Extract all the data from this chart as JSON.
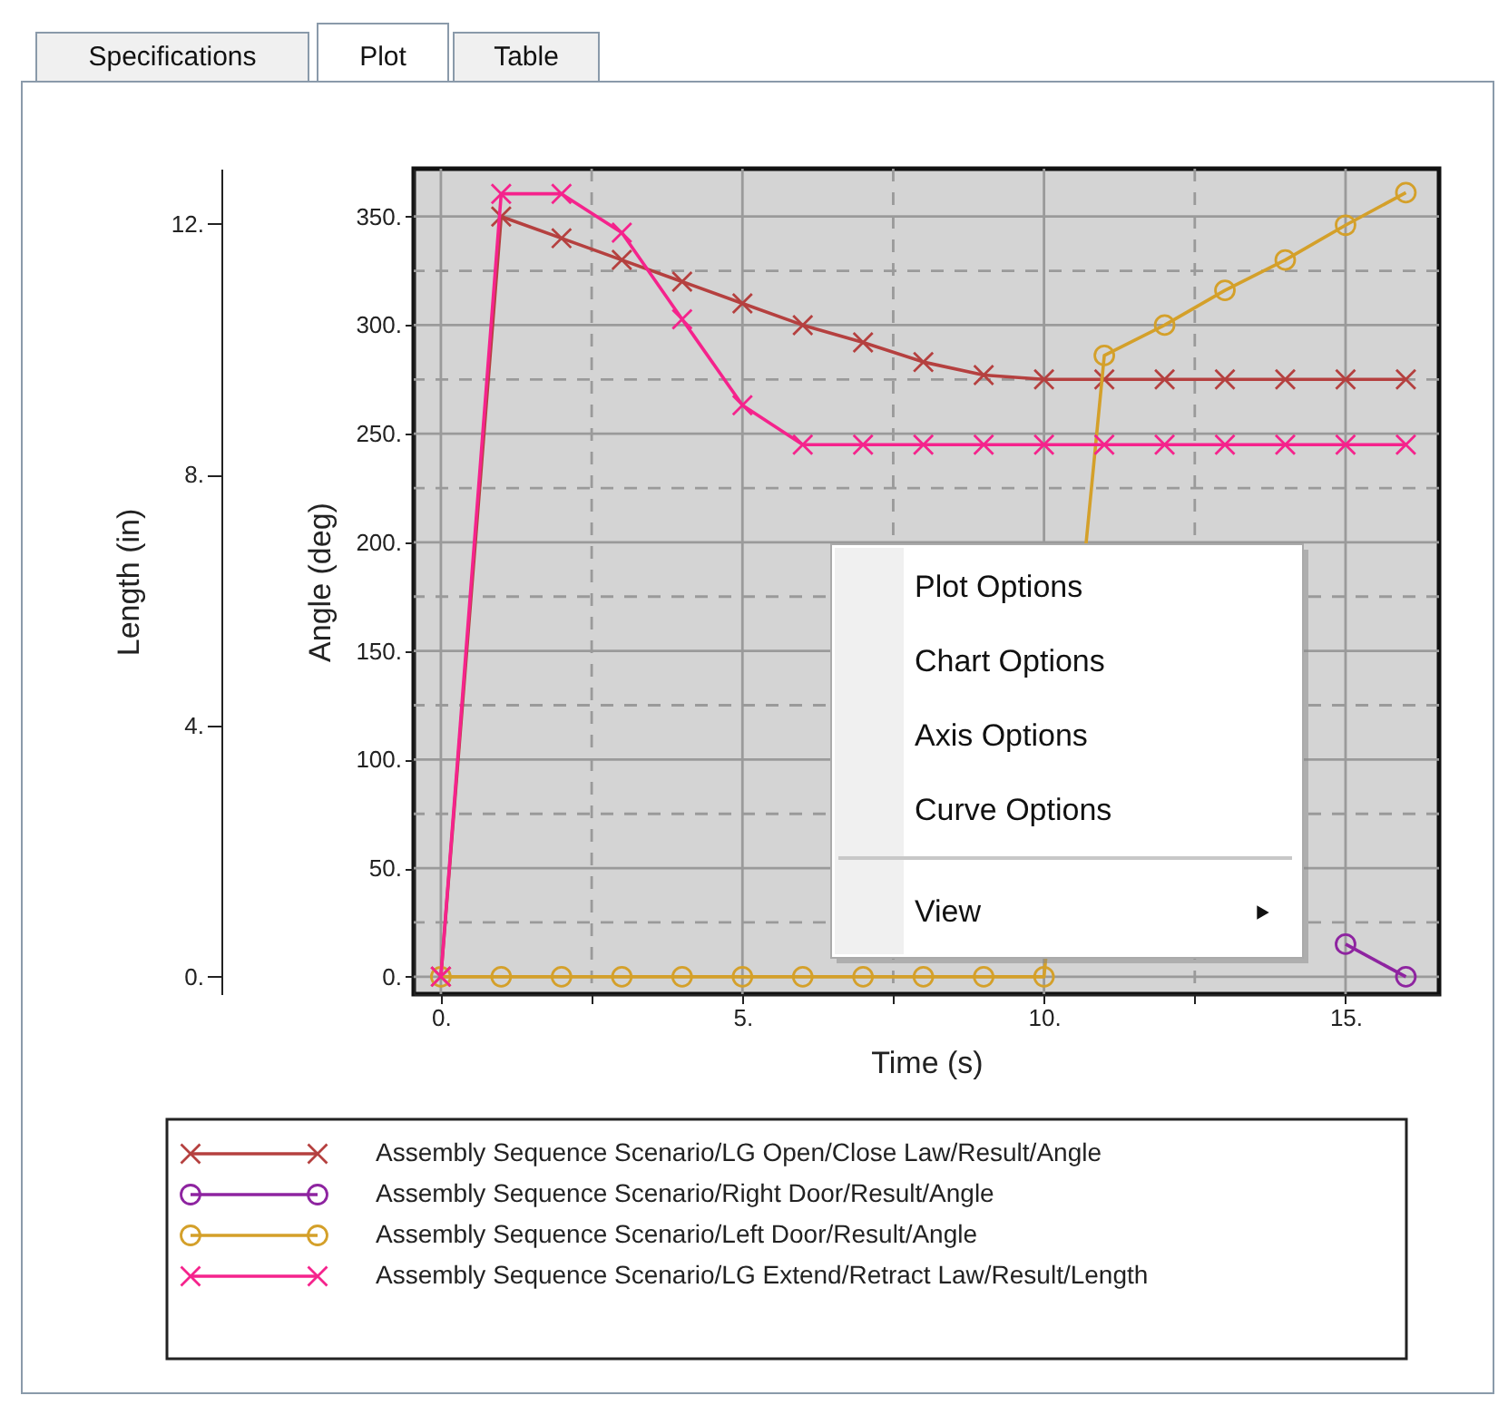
{
  "chart_data": {
    "type": "line",
    "xlabel": "Time (s)",
    "ylabel": "Angle (deg)",
    "y2label": "Length (in)",
    "x": [
      0,
      1,
      2,
      3,
      4,
      5,
      6,
      7,
      8,
      9,
      10,
      11,
      12,
      13,
      14,
      15,
      16
    ],
    "xlim": [
      -0.45,
      16.55
    ],
    "xticks": [
      {
        "value": 0,
        "label": "0."
      },
      {
        "value": 2.5,
        "label": null
      },
      {
        "value": 5,
        "label": "5."
      },
      {
        "value": 7.5,
        "label": null
      },
      {
        "value": 10,
        "label": "10."
      },
      {
        "value": 12.5,
        "label": null
      },
      {
        "value": 15,
        "label": "15."
      }
    ],
    "ylim": [
      -8,
      372
    ],
    "yticks": [
      {
        "value": 0,
        "label": "0."
      },
      {
        "value": 25,
        "label": null
      },
      {
        "value": 50,
        "label": "50."
      },
      {
        "value": 75,
        "label": null
      },
      {
        "value": 100,
        "label": "100."
      },
      {
        "value": 125,
        "label": null
      },
      {
        "value": 150,
        "label": "150."
      },
      {
        "value": 175,
        "label": null
      },
      {
        "value": 200,
        "label": "200."
      },
      {
        "value": 225,
        "label": null
      },
      {
        "value": 250,
        "label": "250."
      },
      {
        "value": 275,
        "label": null
      },
      {
        "value": 300,
        "label": "300."
      },
      {
        "value": 325,
        "label": null
      },
      {
        "value": 350,
        "label": "350."
      }
    ],
    "y2lim": [
      -0.28,
      12.88
    ],
    "y2ticks": [
      {
        "value": 0,
        "label": "0."
      },
      {
        "value": 4,
        "label": "4."
      },
      {
        "value": 8,
        "label": "8."
      },
      {
        "value": 12,
        "label": "12."
      }
    ],
    "grid": true,
    "legend": "bottom",
    "series": [
      {
        "name": "Assembly Sequence Scenario/LG Open/Close Law/Result/Angle",
        "color": "#b5403f",
        "marker": "cross",
        "values": [
          0,
          350,
          340,
          330,
          320,
          310,
          300,
          292,
          283,
          277,
          275,
          275,
          275,
          275,
          275,
          275,
          275
        ]
      },
      {
        "name": "Assembly Sequence Scenario/Right Door/Result/Angle",
        "color": "#8e24a0",
        "marker": "circle",
        "x": [
          15,
          16
        ],
        "values": [
          15,
          0
        ]
      },
      {
        "name": "Assembly Sequence Scenario/Left Door/Result/Angle",
        "color": "#d4a02a",
        "marker": "circle",
        "values": [
          0,
          0,
          0,
          0,
          0,
          0,
          0,
          0,
          0,
          0,
          0,
          286,
          300,
          316,
          330,
          346,
          361
        ]
      },
      {
        "name": "Assembly Sequence Scenario/LG Extend/Retract Law/Result/Length",
        "color": "#f5238c",
        "marker": "cross",
        "axis": "y2",
        "values": [
          0,
          12.48,
          12.48,
          11.86,
          10.48,
          9.11,
          8.48,
          8.48,
          8.48,
          8.48,
          8.48,
          8.48,
          8.48,
          8.48,
          8.48,
          8.48,
          8.48
        ]
      }
    ],
    "annotations": [
      "Specifications",
      "Plot",
      "Table",
      "Plot Options",
      "Chart Options",
      "Axis Options",
      "Curve Options",
      "View"
    ]
  }
}
